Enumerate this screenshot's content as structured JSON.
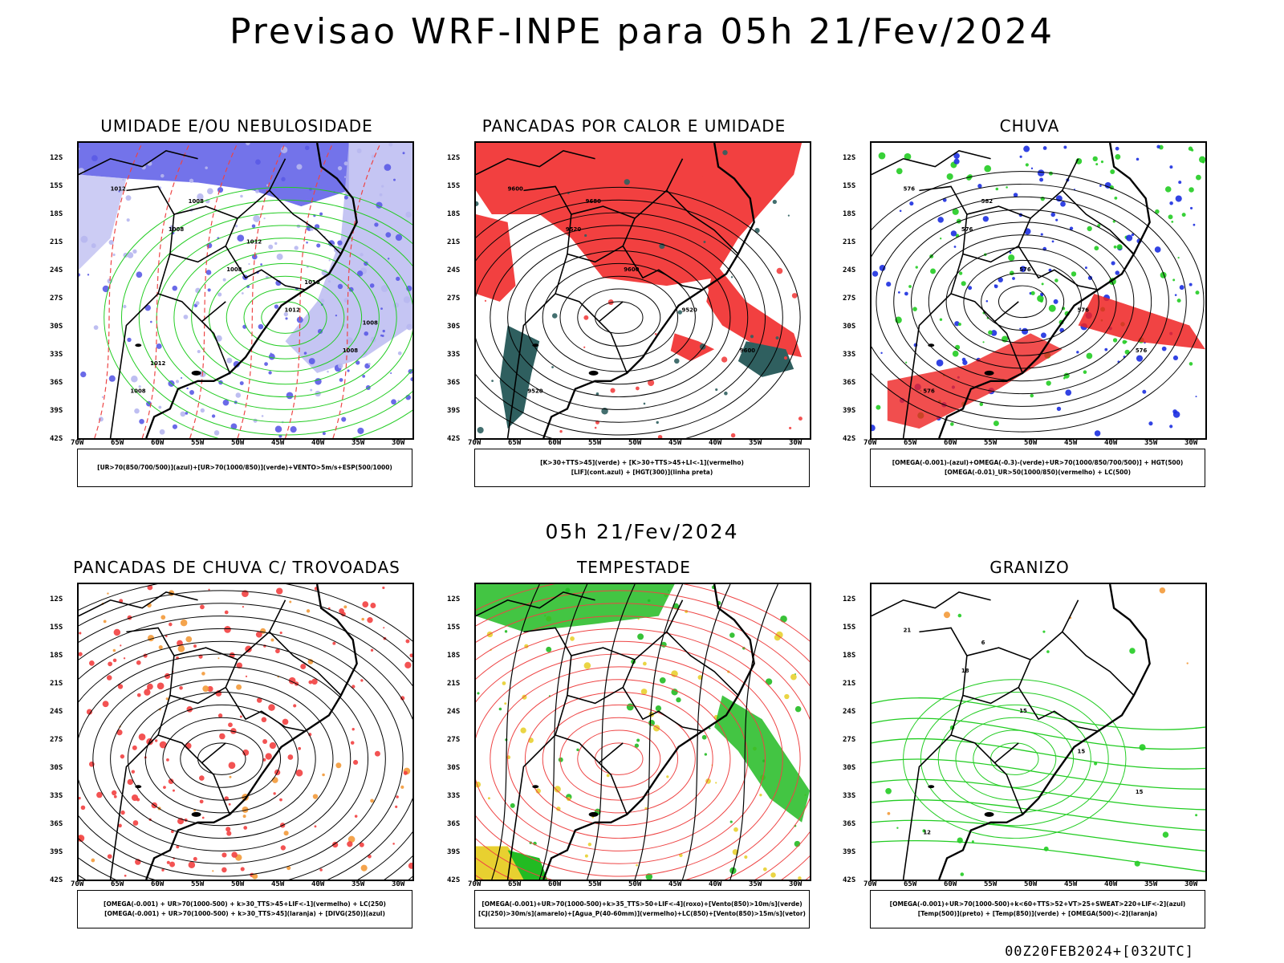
{
  "main_title": "Previsao WRF-INPE  para 05h 21/Fev/2024",
  "mid_title": "05h 21/Fev/2024",
  "footer": "00Z20FEB2024+[032UTC]",
  "lat_ticks": [
    "12S",
    "15S",
    "18S",
    "21S",
    "24S",
    "27S",
    "30S",
    "33S",
    "36S",
    "39S",
    "42S"
  ],
  "lon_ticks": [
    "70W",
    "65W",
    "60W",
    "55W",
    "50W",
    "45W",
    "40W",
    "35W",
    "30W"
  ],
  "panels": [
    {
      "title": "UMIDADE E/OU NEBULOSIDADE",
      "legend": [
        "[UR>70(850/700/500)](azul)+[UR>70(1000/850)](verde)+VENTO>5m/s+ESP(500/1000)"
      ],
      "contour_labels": [
        "1012",
        "1008",
        "1008",
        "1012",
        "1008",
        "1008",
        "1008",
        "1012",
        "1016",
        "1008",
        "1012"
      ],
      "colors": {
        "fill1": "#5a5ae6",
        "fill2": "#b7b7f0",
        "line1": "#22cc22",
        "line2": "#ee4444"
      }
    },
    {
      "title": "PANCADAS POR CALOR E UMIDADE",
      "legend": [
        "[K>30+TTS>45](verde) + [K>30+TTS>45+LI<-1](vermelho)",
        "[LIF](cont.azul) + [HGT(300)](linha preta)"
      ],
      "contour_labels": [
        "9600",
        "9520",
        "9600",
        "9520",
        "9600",
        "9520",
        "9680"
      ],
      "colors": {
        "fill1": "#f24040",
        "fill2": "#2f5f5f",
        "line1": "#2244ee",
        "line2": "#000000"
      }
    },
    {
      "title": "CHUVA",
      "legend": [
        "[OMEGA(-0.001)-(azul)+OMEGA(-0.3)-(verde)+UR>70(1000/850/700/500)] + HGT(500)",
        "[OMEGA(-0.01)_UR>50(1000/850)(vermelho) + LC(500)"
      ],
      "contour_labels": [
        "576",
        "576",
        "576",
        "576",
        "576",
        "576",
        "582"
      ],
      "colors": {
        "fill1": "#1c2fe0",
        "fill2": "#22cc22",
        "line1": "#ee2222",
        "line2": "#000000"
      }
    },
    {
      "title": "PANCADAS DE CHUVA C/ TROVOADAS",
      "legend": [
        "[OMEGA(-0.001) + UR>70(1000-500) + k>30_TTS>45+LIF<-1](vermelho) + LC(250)",
        "[OMEGA(-0.001) + UR>70(1000-500) + k>30_TTS>45](laranja) + [DIVG(250)](azul)"
      ],
      "contour_labels": [],
      "colors": {
        "fill1": "#f24040",
        "fill2": "#f39a3a",
        "line1": "#000000",
        "line2": "#2244ee"
      }
    },
    {
      "title": "TEMPESTADE",
      "legend": [
        "[OMEGA(-0.001)+UR>70(1000-500)+k>35_TTS>50+LIF<-4](roxo)+[Vento(850)>10m/s](verde)",
        "[CJ(250)>30m/s](amarelo)+[Agua_P(40-60mm)](vermelho)+LC(850)+[Vento(850)>15m/s](vetor)"
      ],
      "contour_labels": [],
      "colors": {
        "fill1": "#22bb22",
        "fill2": "#e8d030",
        "line1": "#ee4444",
        "line2": "#000000"
      }
    },
    {
      "title": "GRANIZO",
      "legend": [
        "[OMEGA(-0.001)+UR>70(1000-500)+k<60+TTS>52+VT>25+SWEAT>220+LIF<-2](azul)",
        "[Temp(500)](preto) + [Temp(850)](verde) + [OMEGA(500)<-2](laranja)"
      ],
      "contour_labels": [
        "21",
        "18",
        "15",
        "15",
        "15",
        "12",
        "6"
      ],
      "colors": {
        "fill1": "#22cc22",
        "fill2": "#f39a3a",
        "line1": "#22cc22",
        "line2": "#000000"
      }
    }
  ]
}
